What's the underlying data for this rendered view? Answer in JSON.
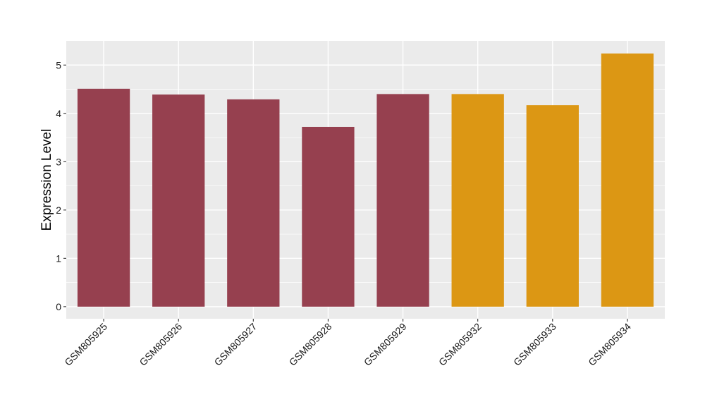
{
  "chart_data": {
    "type": "bar",
    "title": "",
    "xlabel": "",
    "ylabel": "Expression Level",
    "categories": [
      "GSM805925",
      "GSM805926",
      "GSM805927",
      "GSM805928",
      "GSM805929",
      "GSM805932",
      "GSM805933",
      "GSM805934"
    ],
    "values": [
      4.51,
      4.39,
      4.29,
      3.72,
      4.4,
      4.4,
      4.17,
      5.24
    ],
    "bar_colors": [
      "#96404f",
      "#96404f",
      "#96404f",
      "#96404f",
      "#96404f",
      "#dc9714",
      "#dc9714",
      "#dc9714"
    ],
    "ylim": [
      -0.25,
      5.5
    ],
    "yticks": [
      0,
      1,
      2,
      3,
      4,
      5
    ],
    "grid": true,
    "panel_background": "#ebebeb",
    "grid_color": "#ffffff",
    "legend": "none"
  }
}
